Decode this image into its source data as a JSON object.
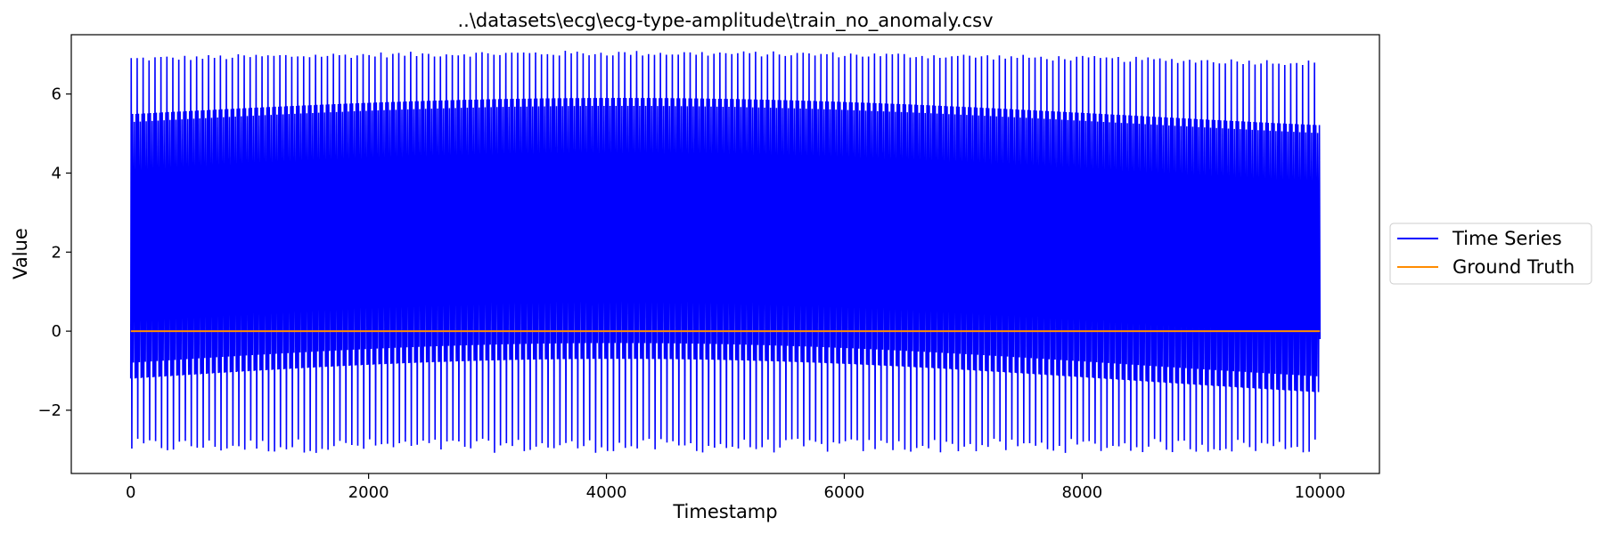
{
  "chart_data": {
    "type": "line",
    "title": "..\\datasets\\ecg\\ecg-type-amplitude\\train_no_anomaly.csv",
    "xlabel": "Timestamp",
    "ylabel": "Value",
    "xlim": [
      -500,
      10500
    ],
    "ylim": [
      -3.6,
      7.5
    ],
    "xticks": [
      0,
      2000,
      4000,
      6000,
      8000,
      10000
    ],
    "xtick_labels": [
      "0",
      "2000",
      "4000",
      "6000",
      "8000",
      "10000"
    ],
    "yticks": [
      -2,
      0,
      2,
      4,
      6
    ],
    "ytick_labels": [
      "−2",
      "0",
      "2",
      "4",
      "6"
    ],
    "grid": false,
    "legend_placement": "outside right, center",
    "series": [
      {
        "name": "Time Series",
        "color": "#0000ff",
        "description": "periodic ECG-like oscillation, roughly 200 beats over 0–10000",
        "x_range": [
          0,
          10000
        ],
        "peak_value_range": [
          6.4,
          7.1
        ],
        "trough_value_range": [
          -3.2,
          -2.6
        ],
        "band_upper": [
          5.0,
          5.9
        ],
        "band_lower": [
          -1.8,
          -0.7
        ],
        "beat_count": 200
      },
      {
        "name": "Ground Truth",
        "color": "#ff8c00",
        "x": [
          0,
          10000
        ],
        "y": [
          0,
          0
        ]
      }
    ]
  }
}
